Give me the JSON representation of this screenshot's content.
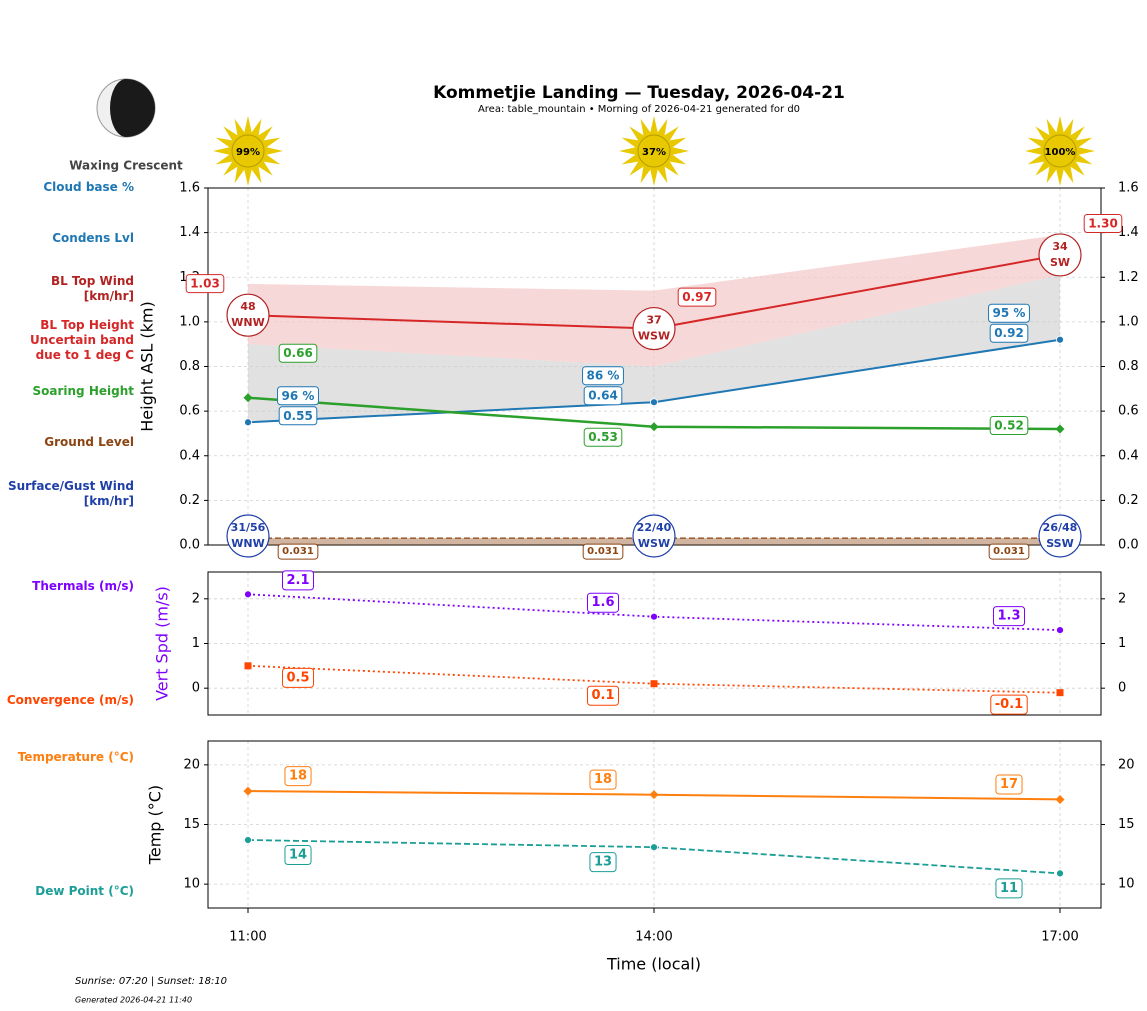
{
  "title": "Kommetjie Landing — Tuesday, 2026-04-21",
  "subtitle": "Area: table_mountain • Morning of 2026-04-21 generated for d0",
  "moon_phase": "Waxing Crescent",
  "sunshine": {
    "values": [
      99,
      37,
      100
    ],
    "value_labels": [
      "99%",
      "37%",
      "100%"
    ],
    "color": "#e8c800"
  },
  "sunrise_sunset": "Sunrise: 07:20 | Sunset: 18:10",
  "generated": "Generated 2026-04-21 11:40",
  "chart_data": [
    {
      "type": "line",
      "ylabel": "Height ASL (km)",
      "ylabel_color": "#000000",
      "grid": true,
      "ylim": [
        0,
        1.6
      ],
      "yticks": [
        {
          "value": 0,
          "label": "0.0"
        },
        0.2,
        0.4,
        0.6,
        0.8,
        {
          "value": 1,
          "label": "1.0"
        },
        1.2,
        1.4,
        1.6
      ],
      "series": [
        {
          "name": "Cloud base %",
          "color": "#1f77b4",
          "values": [
            96,
            86,
            95
          ],
          "value_labels": [
            "96 %",
            "86 %",
            "95 %"
          ]
        },
        {
          "name": "Condens Lvl",
          "color": "#1f77b4",
          "values": [
            0.55,
            0.64,
            0.92
          ]
        },
        {
          "name": "BL Top Wind\n[km/hr]",
          "color": "#b22222",
          "values": [
            48,
            37,
            34
          ],
          "directions": [
            "WNW",
            "WSW",
            "SW"
          ]
        },
        {
          "name": "BL Top Height\nUncertain band\ndue to 1 deg C",
          "color": "#d62728",
          "values": [
            1.03,
            0.97,
            1.3
          ],
          "value_labels": [
            "1.03",
            "0.97",
            "1.30"
          ],
          "band_upper": [
            1.17,
            1.14,
            1.39
          ],
          "band_lower": [
            0.9,
            0.8,
            1.21
          ],
          "band_color": "#f4c7c7"
        },
        {
          "name": "Soaring Height",
          "color": "#2ca02c",
          "values": [
            0.66,
            0.53,
            0.52
          ]
        },
        {
          "name": "Ground Level",
          "color": "#8b4513",
          "values": [
            0.031,
            0.031,
            0.031
          ]
        },
        {
          "name": "Surface/Gust Wind\n[km/hr]",
          "color": "#1f3fa8",
          "values": [
            31,
            22,
            26
          ],
          "gusts": [
            56,
            40,
            48
          ],
          "value_labels": [
            "31/56",
            "22/40",
            "26/48"
          ],
          "directions": [
            "WNW",
            "WSW",
            "SSW"
          ]
        }
      ]
    },
    {
      "type": "line",
      "ylabel": "Vert Spd (m/s)",
      "ylabel_color": "#7f00ff",
      "grid": true,
      "ylim": [
        -0.6,
        2.6
      ],
      "yticks": [
        0,
        1,
        2
      ],
      "series": [
        {
          "name": "Thermals (m/s)",
          "color": "#7f00ff",
          "values": [
            2.1,
            1.6,
            1.3
          ],
          "marker": "circle",
          "line_style": "dotted"
        },
        {
          "name": "Convergence (m/s)",
          "color": "#ff4500",
          "values": [
            0.5,
            0.1,
            -0.1
          ],
          "marker": "square",
          "line_style": "dotted"
        }
      ]
    },
    {
      "type": "line",
      "ylabel": "Temp (°C)",
      "ylabel_color": "#000000",
      "grid": true,
      "xlabel": "Time (local)",
      "categories": [
        "11:00",
        "14:00",
        "17:00"
      ],
      "ylim": [
        8,
        22
      ],
      "yticks": [
        10,
        15,
        20
      ],
      "series": [
        {
          "name": "Temperature (°C)",
          "color": "#ff7f0e",
          "values": [
            17.8,
            17.5,
            17.1
          ],
          "value_labels": [
            "18",
            "18",
            "17"
          ],
          "marker": "diamond",
          "line_style": "solid"
        },
        {
          "name": "Dew Point (°C)",
          "color": "#1a9e96",
          "values": [
            13.7,
            13.1,
            10.9
          ],
          "value_labels": [
            "14",
            "13",
            "11"
          ],
          "marker": "circle",
          "line_style": "dashed"
        }
      ]
    }
  ]
}
